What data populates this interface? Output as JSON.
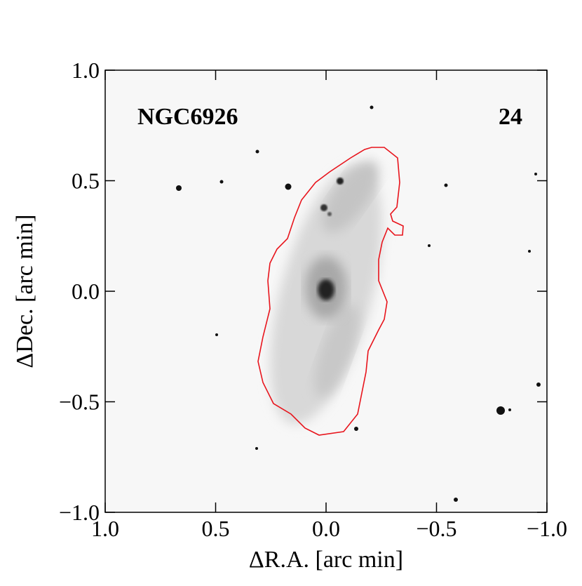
{
  "chart_data": {
    "type": "image",
    "title": "NGC6926",
    "annotation": "24",
    "xlabel": "ΔR.A. [arc min]",
    "ylabel": "ΔDec. [arc min]",
    "xlim": [
      1.0,
      -1.0
    ],
    "ylim": [
      -1.0,
      1.0
    ],
    "xticks": [
      {
        "value": 1.0,
        "label": "1.0"
      },
      {
        "value": 0.5,
        "label": "0.5"
      },
      {
        "value": 0,
        "label": "0.0"
      },
      {
        "value": -0.5,
        "label": "−0.5"
      },
      {
        "value": -1.0,
        "label": "−1.0"
      }
    ],
    "yticks": [
      {
        "value": -1.0,
        "label": "−1.0"
      },
      {
        "value": -0.5,
        "label": "−0.5"
      },
      {
        "value": 0,
        "label": "0.0"
      },
      {
        "value": 0.5,
        "label": "0.5"
      },
      {
        "value": 1.0,
        "label": "1.0"
      }
    ],
    "contour_color": "#e8141c"
  }
}
